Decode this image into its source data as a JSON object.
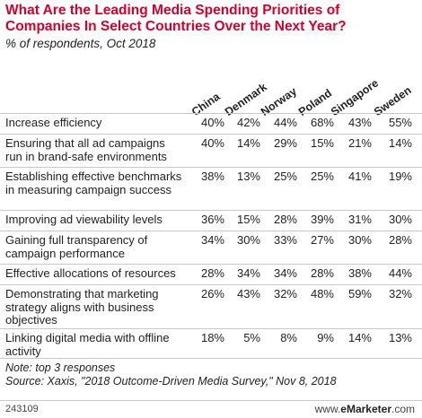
{
  "chart_data": {
    "type": "table",
    "title": "What Are the Leading Media Spending Priorities of Companies In Select Countries Over the Next Year?",
    "subtitle": "% of respondents, Oct 2018",
    "columns": [
      "China",
      "Denmark",
      "Norway",
      "Poland",
      "Singapore",
      "Sweden"
    ],
    "rows": [
      {
        "label": "Increase efficiency",
        "values": [
          "40%",
          "42%",
          "44%",
          "68%",
          "43%",
          "55%"
        ]
      },
      {
        "label": "Ensuring that all ad campaigns run in brand-safe environments",
        "values": [
          "40%",
          "14%",
          "29%",
          "15%",
          "21%",
          "14%"
        ]
      },
      {
        "label": "Establishing effective benchmarks in measuring campaign success",
        "values": [
          "38%",
          "13%",
          "25%",
          "25%",
          "41%",
          "19%"
        ]
      },
      {
        "label": "Improving ad viewability levels",
        "values": [
          "36%",
          "15%",
          "28%",
          "39%",
          "31%",
          "30%"
        ]
      },
      {
        "label": "Gaining full transparency of campaign performance",
        "values": [
          "34%",
          "30%",
          "33%",
          "27%",
          "30%",
          "28%"
        ]
      },
      {
        "label": "Effective allocations of resources",
        "values": [
          "28%",
          "34%",
          "34%",
          "28%",
          "38%",
          "44%"
        ]
      },
      {
        "label": "Demonstrating that marketing strategy aligns with business objectives",
        "values": [
          "26%",
          "43%",
          "32%",
          "48%",
          "59%",
          "32%"
        ]
      },
      {
        "label": "Linking digital media with offline activity",
        "values": [
          "18%",
          "5%",
          "8%",
          "9%",
          "14%",
          "13%"
        ]
      }
    ],
    "note": "Note: top 3 responses",
    "source": "Source: Xaxis, \"2018 Outcome-Driven Media Survey,\" Nov 8, 2018"
  },
  "footer": {
    "chart_id": "243109",
    "brand_prefix": "www.",
    "brand_name": "eMarketer",
    "brand_suffix": ".com"
  },
  "colors": {
    "title": "#d6002a",
    "rule": "#c8c8c8"
  }
}
